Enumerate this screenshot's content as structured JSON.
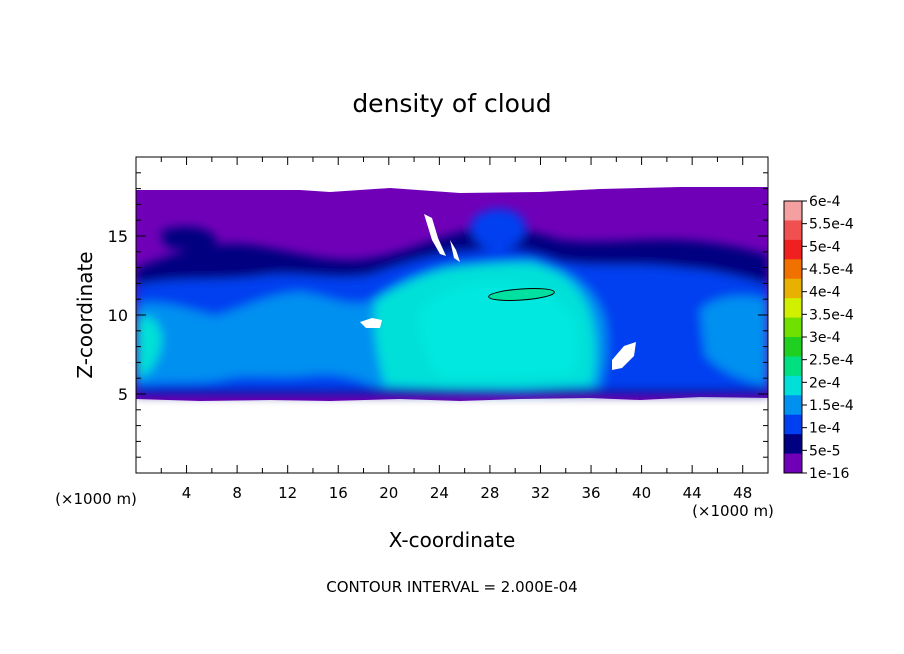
{
  "chart_data": {
    "type": "heatmap",
    "title": "density of cloud",
    "xlabel": "X-coordinate",
    "ylabel": "Z-coordinate",
    "x_unit": "(×1000 m)",
    "y_unit": "(×1000 m)",
    "xlim": [
      0,
      50
    ],
    "ylim": [
      0,
      20
    ],
    "x_ticks": [
      "4",
      "8",
      "12",
      "16",
      "20",
      "24",
      "28",
      "32",
      "36",
      "40",
      "44",
      "48"
    ],
    "y_ticks": [
      "5",
      "10",
      "15"
    ],
    "footer": "CONTOUR INTERVAL = 2.000E-04",
    "colorbar": {
      "labels": [
        "6e-4",
        "5.5e-4",
        "5e-4",
        "4.5e-4",
        "4e-4",
        "3.5e-4",
        "3e-4",
        "2.5e-4",
        "2e-4",
        "1.5e-4",
        "1e-4",
        "5e-5",
        "1e-16"
      ],
      "colors": [
        "#f5a0a0",
        "#f05050",
        "#f02020",
        "#f07000",
        "#e8b000",
        "#d0f000",
        "#70e000",
        "#20d020",
        "#00e080",
        "#00e0d8",
        "#0090f0",
        "#0040f0",
        "#000080",
        "#7000b8"
      ]
    },
    "field_extent": {
      "x": [
        0,
        50
      ],
      "z": [
        5,
        18
      ]
    },
    "contour_line": {
      "value": "2e-4",
      "center": [
        30.5,
        11.3
      ],
      "half_width": 2.6,
      "half_height": 0.35
    }
  }
}
